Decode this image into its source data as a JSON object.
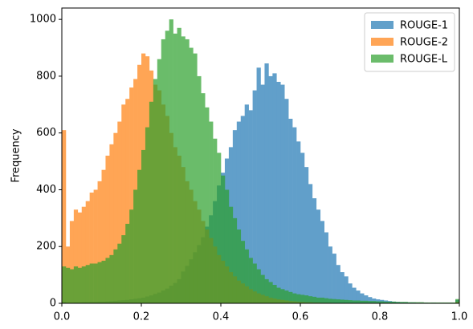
{
  "chart_data": {
    "type": "histogram",
    "y_label": "Frequency",
    "bins": [
      0,
      0.01,
      0.02,
      0.03,
      0.04,
      0.05,
      0.06,
      0.07,
      0.08,
      0.09,
      0.1,
      0.11,
      0.12,
      0.13,
      0.14,
      0.15,
      0.16,
      0.17,
      0.18,
      0.19,
      0.2,
      0.21,
      0.22,
      0.23,
      0.24,
      0.25,
      0.26,
      0.27,
      0.28,
      0.29,
      0.3,
      0.31,
      0.32,
      0.33,
      0.34,
      0.35,
      0.36,
      0.37,
      0.38,
      0.39,
      0.4,
      0.41,
      0.42,
      0.43,
      0.44,
      0.45,
      0.46,
      0.47,
      0.48,
      0.49,
      0.5,
      0.51,
      0.52,
      0.53,
      0.54,
      0.55,
      0.56,
      0.57,
      0.58,
      0.59,
      0.6,
      0.61,
      0.62,
      0.63,
      0.64,
      0.65,
      0.66,
      0.67,
      0.68,
      0.69,
      0.7,
      0.71,
      0.72,
      0.73,
      0.74,
      0.75,
      0.76,
      0.77,
      0.78,
      0.79,
      0.8,
      0.81,
      0.82,
      0.83,
      0.84,
      0.85,
      0.86,
      0.87,
      0.88,
      0.89,
      0.9,
      0.91,
      0.92,
      0.93,
      0.94,
      0.95,
      0.96,
      0.97,
      0.98,
      0.99,
      1
    ],
    "series": [
      {
        "name": "ROUGE-1",
        "color": "#1f77b4",
        "values": [
          5,
          2,
          2,
          3,
          3,
          4,
          4,
          5,
          5,
          6,
          6,
          7,
          8,
          9,
          10,
          11,
          12,
          14,
          16,
          18,
          20,
          24,
          28,
          33,
          38,
          45,
          52,
          62,
          72,
          85,
          112,
          132,
          155,
          180,
          205,
          233,
          270,
          310,
          360,
          415,
          460,
          510,
          550,
          610,
          640,
          660,
          700,
          680,
          750,
          830,
          770,
          845,
          800,
          810,
          780,
          770,
          720,
          650,
          620,
          570,
          530,
          480,
          420,
          370,
          330,
          290,
          250,
          200,
          175,
          135,
          110,
          95,
          70,
          55,
          45,
          35,
          28,
          22,
          17,
          14,
          12,
          10,
          8,
          6,
          5,
          4,
          4,
          3,
          3,
          2,
          2,
          2,
          1,
          2,
          1,
          1,
          1,
          1,
          1,
          12
        ]
      },
      {
        "name": "ROUGE-2",
        "color": "#ff7f0e",
        "values": [
          610,
          200,
          290,
          330,
          320,
          340,
          360,
          390,
          400,
          430,
          470,
          520,
          560,
          600,
          640,
          700,
          720,
          760,
          790,
          840,
          880,
          870,
          820,
          770,
          750,
          700,
          660,
          600,
          550,
          520,
          480,
          430,
          400,
          360,
          330,
          290,
          260,
          230,
          200,
          170,
          150,
          130,
          110,
          95,
          80,
          70,
          60,
          50,
          42,
          35,
          30,
          25,
          20,
          17,
          14,
          12,
          10,
          8,
          7,
          6,
          5,
          4,
          4,
          3,
          3,
          2,
          2,
          2,
          1,
          1,
          1,
          1,
          1,
          1,
          1,
          1,
          1,
          1,
          1,
          1,
          0,
          0,
          0,
          0,
          0,
          0,
          0,
          0,
          0,
          0,
          0,
          0,
          0,
          0,
          0,
          0,
          0,
          0,
          0,
          5
        ]
      },
      {
        "name": "ROUGE-L",
        "color": "#2ca02c",
        "values": [
          130,
          125,
          120,
          130,
          125,
          130,
          135,
          140,
          140,
          145,
          150,
          160,
          170,
          190,
          210,
          240,
          280,
          330,
          400,
          470,
          540,
          620,
          710,
          790,
          860,
          930,
          960,
          1000,
          950,
          970,
          940,
          930,
          900,
          880,
          800,
          740,
          690,
          640,
          580,
          530,
          450,
          400,
          340,
          300,
          260,
          220,
          190,
          160,
          140,
          120,
          100,
          85,
          75,
          65,
          55,
          50,
          45,
          40,
          35,
          32,
          30,
          28,
          25,
          23,
          20,
          20,
          18,
          16,
          15,
          14,
          13,
          12,
          11,
          10,
          10,
          9,
          9,
          8,
          8,
          7,
          7,
          6,
          6,
          6,
          5,
          5,
          5,
          4,
          4,
          4,
          4,
          3,
          3,
          3,
          3,
          3,
          3,
          3,
          3,
          15
        ]
      }
    ],
    "opacity": 0.7,
    "xlim": [
      0,
      1
    ],
    "ylim": [
      0,
      1040
    ],
    "xticks": [
      {
        "value": 0,
        "label": "0.0"
      },
      {
        "value": 0.2,
        "label": "0.2"
      },
      {
        "value": 0.4,
        "label": "0.4"
      },
      {
        "value": 0.6,
        "label": "0.6"
      },
      {
        "value": 0.8,
        "label": "0.8"
      },
      {
        "value": 1,
        "label": "1.0"
      }
    ],
    "yticks": [
      0,
      200,
      400,
      600,
      800,
      1000
    ],
    "legend": "upper right"
  }
}
